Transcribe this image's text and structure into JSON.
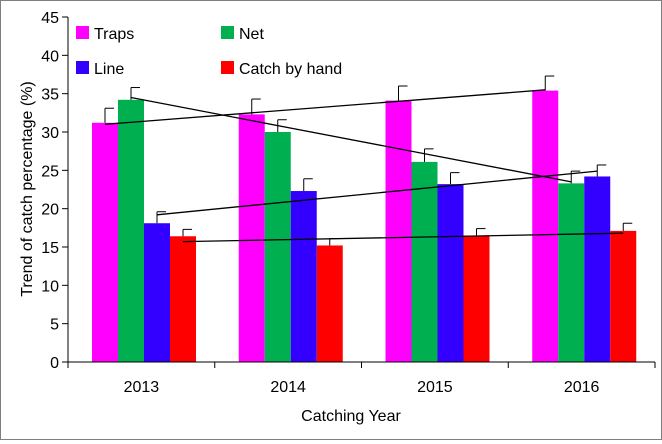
{
  "chart_data": {
    "type": "bar",
    "title": "",
    "xlabel": "Catching Year",
    "ylabel": "Trend of catch percentage (%)",
    "ylim": [
      0,
      45
    ],
    "ytick_step": 5,
    "yticks": [
      "0",
      "5",
      "10",
      "15",
      "20",
      "25",
      "30",
      "35",
      "40",
      "45"
    ],
    "grid": false,
    "legend_position": "top-left",
    "categories": [
      "2013",
      "2014",
      "2015",
      "2016"
    ],
    "series": [
      {
        "name": "Traps",
        "color": "#ff00ff",
        "values": [
          31.2,
          32.3,
          34.1,
          35.4
        ],
        "errors": [
          1.9,
          2.0,
          1.9,
          1.9
        ],
        "trend": [
          31.0,
          35.5
        ]
      },
      {
        "name": "Net",
        "color": "#00b050",
        "values": [
          34.2,
          30.0,
          26.1,
          23.3
        ],
        "errors": [
          1.6,
          1.6,
          1.7,
          1.6
        ],
        "trend": [
          34.5,
          23.5
        ]
      },
      {
        "name": "Line",
        "color": "#3300ff",
        "values": [
          18.1,
          22.3,
          23.2,
          24.2
        ],
        "errors": [
          1.5,
          1.6,
          1.5,
          1.5
        ],
        "trend": [
          19.2,
          24.9
        ]
      },
      {
        "name": "Catch by hand",
        "color": "#ff0000",
        "values": [
          16.4,
          15.2,
          16.5,
          17.1
        ],
        "errors": [
          0.9,
          0.9,
          0.9,
          1.0
        ],
        "trend": [
          15.7,
          16.8
        ]
      }
    ]
  }
}
